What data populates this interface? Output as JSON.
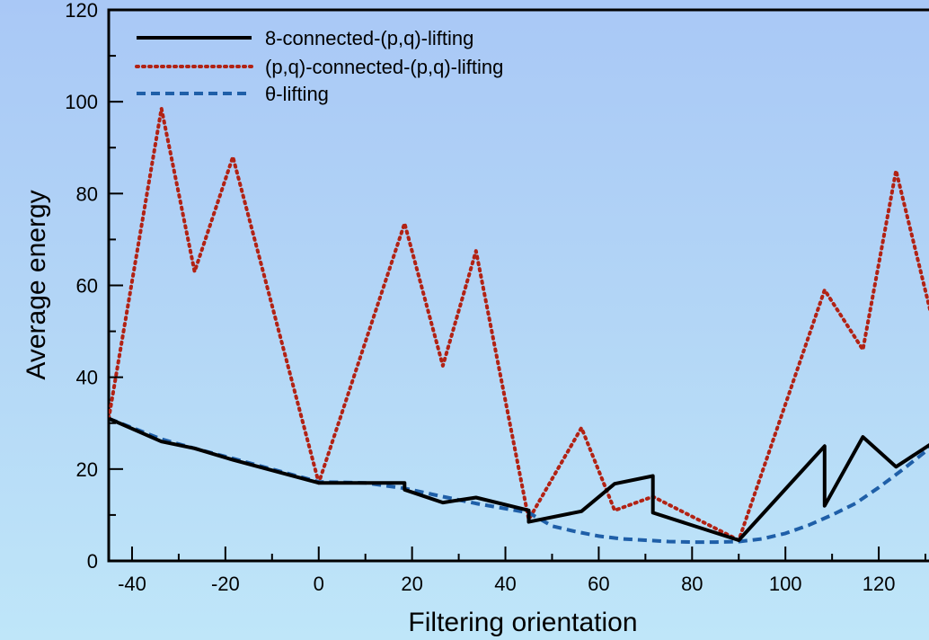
{
  "colors": {
    "frame": "#000000",
    "bg_top": "#a9c8f6",
    "bg_bottom": "#bfe6f9"
  },
  "chart_data": {
    "type": "line",
    "title": "",
    "xlabel": "Filtering orientation",
    "ylabel": "Average energy",
    "xlim": [
      -45,
      135
    ],
    "ylim": [
      0,
      120
    ],
    "xticks": [
      -40,
      -20,
      0,
      20,
      40,
      60,
      80,
      100,
      120
    ],
    "yticks": [
      0,
      20,
      40,
      60,
      80,
      100,
      120
    ],
    "xtick_labels": [
      "-40",
      "-20",
      "0",
      "20",
      "40",
      "60",
      "80",
      "100",
      "120"
    ],
    "ytick_labels": [
      "0",
      "20",
      "40",
      "60",
      "80",
      "100",
      "120"
    ],
    "grid": false,
    "legend_position": "top-left",
    "series": [
      {
        "name": "8-connected-(p,q)-lifting",
        "color": "#000000",
        "style": "solid",
        "x": [
          -45,
          -33.7,
          -26.6,
          -18.4,
          -18.4,
          0,
          18.4,
          18.4,
          26.6,
          33.7,
          45,
          45,
          56.3,
          63.4,
          71.6,
          71.6,
          90,
          108.4,
          108.4,
          116.6,
          123.7,
          135
        ],
        "y": [
          31,
          26,
          24.5,
          22,
          22,
          17,
          17,
          15.5,
          12.7,
          13.8,
          11,
          8.5,
          10.8,
          16.8,
          18.5,
          10.5,
          4.5,
          25,
          12,
          27,
          20.5,
          28
        ]
      },
      {
        "name": "(p,q)-connected-(p,q)-lifting",
        "color": "#b22214",
        "style": "dotted",
        "x": [
          -45,
          -33.7,
          -26.6,
          -18.4,
          0,
          18.4,
          26.6,
          33.7,
          45,
          56.3,
          63.4,
          71.6,
          90,
          108.4,
          116.6,
          123.7,
          135
        ],
        "y": [
          31,
          98.5,
          63,
          88,
          17,
          73.5,
          42.5,
          67.5,
          9,
          29,
          11,
          14,
          4.5,
          59,
          46,
          85,
          38
        ]
      },
      {
        "name": "θ-lifting",
        "color": "#1f5fa8",
        "style": "dashed",
        "x": [
          -45,
          -33.7,
          -26.6,
          -18.4,
          0,
          10,
          18.4,
          26.6,
          33.7,
          45,
          50,
          55,
          60,
          65,
          70,
          75,
          80,
          85,
          90,
          95,
          100,
          105,
          110,
          115,
          120,
          125,
          130,
          135
        ],
        "y": [
          31,
          26.5,
          24.5,
          22.3,
          17.2,
          17,
          15.8,
          14,
          12.5,
          10.5,
          7.6,
          6.4,
          5.4,
          4.8,
          4.5,
          4.2,
          4.1,
          4.1,
          4.2,
          4.8,
          6,
          7.8,
          10,
          12.5,
          16,
          19.8,
          23.8,
          28
        ]
      }
    ]
  }
}
